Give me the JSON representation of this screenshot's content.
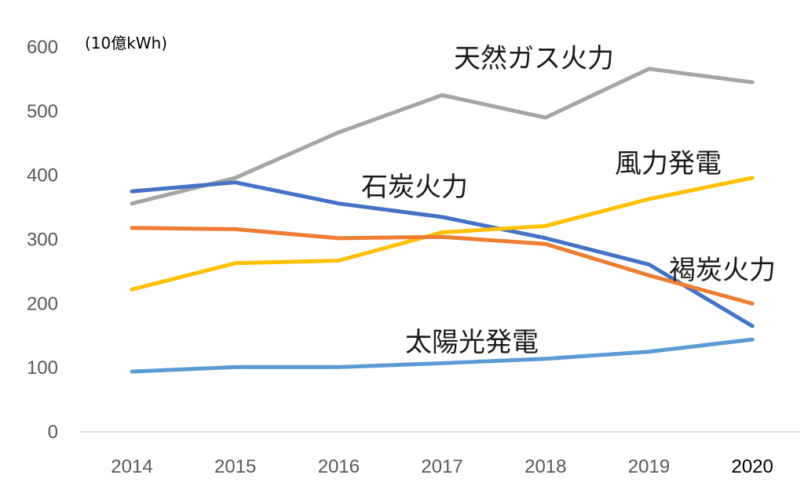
{
  "chart_data": {
    "type": "line",
    "title": "",
    "unit_label": "(10億kWh)",
    "xlabel": "",
    "ylabel": "",
    "categories": [
      "2014",
      "2015",
      "2016",
      "2017",
      "2018",
      "2019",
      "2020"
    ],
    "y_ticks": [
      "0",
      "100",
      "200",
      "300",
      "400",
      "500",
      "600"
    ],
    "ylim": [
      0,
      600
    ],
    "grid": false,
    "legend": "none",
    "series": [
      {
        "name": "天然ガス火力",
        "color": "#a5a5a5",
        "values": [
          356,
          396,
          467,
          525,
          490,
          566,
          545
        ]
      },
      {
        "name": "石炭火力",
        "color": "#4472c4",
        "values": [
          375,
          389,
          356,
          335,
          302,
          261,
          165
        ]
      },
      {
        "name": "風力発電",
        "color": "#ffc000",
        "values": [
          222,
          263,
          267,
          311,
          321,
          363,
          396
        ]
      },
      {
        "name": "褐炭火力",
        "color": "#ed7d31",
        "values": [
          318,
          316,
          302,
          304,
          293,
          244,
          200
        ]
      },
      {
        "name": "太陽光発電",
        "color": "#5b9bd5",
        "values": [
          94,
          101,
          101,
          107,
          114,
          125,
          144
        ]
      }
    ]
  }
}
